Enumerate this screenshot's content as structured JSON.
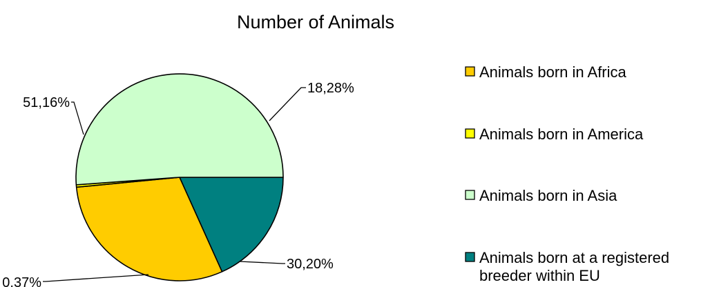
{
  "chart_data": {
    "type": "pie",
    "title": "Number of Animals",
    "slices": [
      {
        "label": "Animals born at a registered breeder within EU",
        "value": 18.28,
        "display": "18,28%",
        "color": "#008080"
      },
      {
        "label": "Animals born in Africa",
        "value": 30.2,
        "display": "30,20%",
        "color": "#FFCC00"
      },
      {
        "label": "Animals born in America",
        "value": 0.37,
        "display": "0,37%",
        "color": "#FFFF00"
      },
      {
        "label": "Animals born in Asia",
        "value": 51.16,
        "display": "51,16%",
        "color": "#CCFFCC"
      }
    ],
    "legend": {
      "placement": "right",
      "entries": [
        {
          "label": "Animals born in Africa",
          "lines": [
            "Animals born in Africa"
          ],
          "color": "#FFCC00"
        },
        {
          "label": "Animals born in America",
          "lines": [
            "Animals born in America"
          ],
          "color": "#FFFF00"
        },
        {
          "label": "Animals born in Asia",
          "lines": [
            "Animals born in Asia"
          ],
          "color": "#CCFFCC"
        },
        {
          "label": "Animals born at a registered breeder within EU",
          "lines": [
            "Animals born at a registered",
            "breeder within EU"
          ],
          "color": "#008080"
        }
      ]
    }
  }
}
